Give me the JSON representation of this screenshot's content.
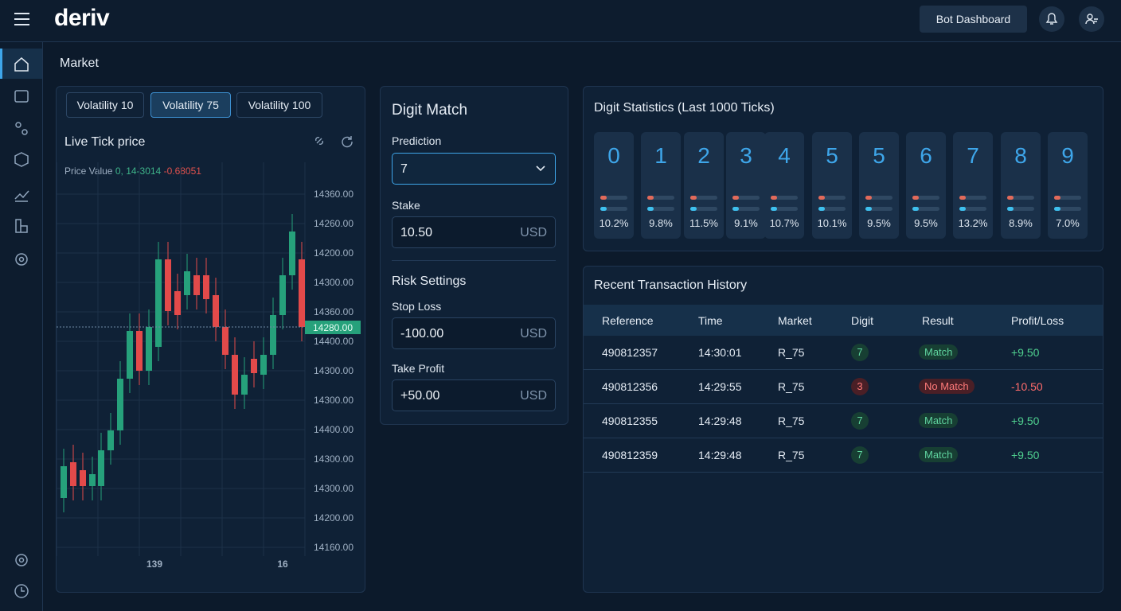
{
  "header": {
    "logo": "deriv",
    "button": "Bot Dashboard"
  },
  "page_title": "Market",
  "market": {
    "tabs": [
      "Volatility 10",
      "Volatility 75",
      "Volatility 100"
    ],
    "active_tab": 1,
    "title": "Live Tick price",
    "legend_label": "Price Value",
    "legend_values": [
      "0,",
      "14-3014",
      "-0.68051"
    ],
    "y_labels": [
      "14360.00",
      "14260.00",
      "14200.00",
      "14300.00",
      "14360.00",
      "14400.00",
      "14300.00",
      "14300.00",
      "14400.00",
      "14300.00",
      "14300.00",
      "14200.00",
      "14160.00"
    ],
    "current_price": "14280.00",
    "x_labels": [
      "139",
      "16"
    ]
  },
  "digit_match": {
    "title": "Digit Match",
    "prediction_label": "Prediction",
    "prediction": "7",
    "stake_label": "Stake",
    "stake": "10.50",
    "currency": "USD",
    "risk_title": "Risk Settings",
    "stop_loss_label": "Stop Loss",
    "stop_loss": "-100.00",
    "take_profit_label": "Take Profit",
    "take_profit": "+50.00"
  },
  "digit_stats": {
    "title": "Digit Statistics (Last 1000 Ticks)",
    "digits": [
      "0",
      "1",
      "2",
      "3",
      "4",
      "5",
      "5",
      "6",
      "7",
      "8",
      "9"
    ],
    "percents": [
      "10.2%",
      "9.8%",
      "11.5%",
      "9.1%",
      "10.7%",
      "10.1%",
      "9.5%",
      "9.5%",
      "13.2%",
      "8.9%",
      "7.0%"
    ]
  },
  "history": {
    "title": "Recent Transaction History",
    "columns": [
      "Reference",
      "Time",
      "Market",
      "Digit",
      "Result",
      "Profit/Loss"
    ],
    "rows": [
      [
        "490812357",
        "14:30:01",
        "R_75",
        "7",
        "Match",
        "+9.50"
      ],
      [
        "490812356",
        "14:29:55",
        "R_75",
        "3",
        "No Match",
        "-10.50"
      ],
      [
        "490812355",
        "14:29:48",
        "R_75",
        "7",
        "Match",
        "+9.50"
      ],
      [
        "490812359",
        "14:29:48",
        "R_75",
        "7",
        "Match",
        "+9.50"
      ]
    ]
  }
}
